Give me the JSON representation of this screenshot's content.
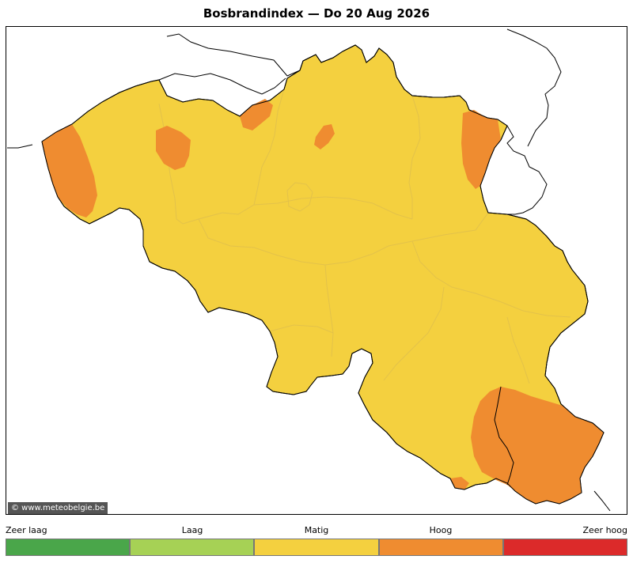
{
  "title": "Bosbrandindex  —  Do 20 Aug 2026",
  "credit": "© www.meteobelgie.be",
  "legend": [
    {
      "label": "Zeer laag",
      "color": "#4aa64a"
    },
    {
      "label": "Laag",
      "color": "#a6d155"
    },
    {
      "label": "Matig",
      "color": "#f4d03f"
    },
    {
      "label": "Hoog",
      "color": "#ef8c30"
    },
    {
      "label": "Zeer hoog",
      "color": "#dc2a2a"
    }
  ],
  "map": {
    "base_level": "Matig",
    "base_color": "#f4d03f",
    "hotspot_level": "Hoog",
    "hotspot_color": "#ef8c30",
    "border_color": "#000000",
    "province_line_color": "#e3c24a"
  }
}
